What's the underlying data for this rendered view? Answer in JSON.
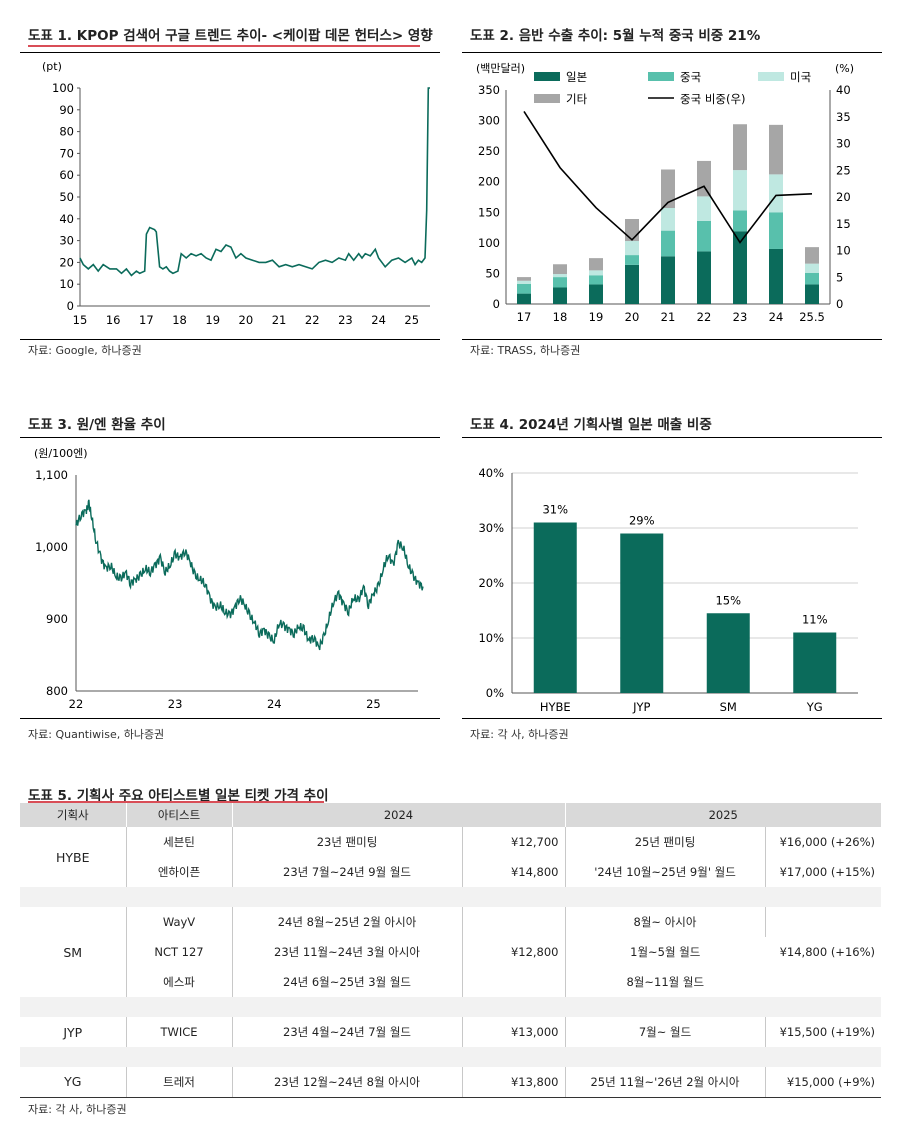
{
  "fig1": {
    "title": "도표 1. KPOP 검색어 구글 트렌드 추이- <케이팝 데몬 헌터스> 영향",
    "source": "자료: Google, 하나증권",
    "chart_data": {
      "type": "line",
      "ylabel": "(pt)",
      "ylim": [
        0,
        100
      ],
      "yticks": [
        "0",
        "10",
        "20",
        "30",
        "40",
        "50",
        "60",
        "70",
        "80",
        "90",
        "100"
      ],
      "xticks": [
        "15",
        "16",
        "17",
        "18",
        "19",
        "20",
        "21",
        "22",
        "23",
        "24",
        "25"
      ],
      "x": [
        15.0,
        15.1,
        15.25,
        15.4,
        15.55,
        15.7,
        15.9,
        16.1,
        16.25,
        16.4,
        16.55,
        16.7,
        16.8,
        16.95,
        17.0,
        17.1,
        17.25,
        17.3,
        17.4,
        17.5,
        17.6,
        17.7,
        17.8,
        17.95,
        18.05,
        18.2,
        18.35,
        18.5,
        18.65,
        18.8,
        18.95,
        19.1,
        19.25,
        19.4,
        19.55,
        19.7,
        19.85,
        20.0,
        20.2,
        20.4,
        20.6,
        20.8,
        21.0,
        21.2,
        21.4,
        21.6,
        21.8,
        22.0,
        22.2,
        22.4,
        22.6,
        22.8,
        23.0,
        23.1,
        23.25,
        23.4,
        23.5,
        23.6,
        23.75,
        23.9,
        24.0,
        24.2,
        24.4,
        24.6,
        24.8,
        25.0,
        25.1,
        25.2,
        25.3,
        25.4,
        25.45,
        25.5,
        25.55
      ],
      "values": [
        22,
        19,
        17,
        19,
        16,
        19,
        17,
        17,
        15,
        17,
        14,
        16,
        15,
        16,
        33,
        36,
        35,
        34,
        18,
        17,
        18,
        16,
        15,
        16,
        24,
        22,
        24,
        23,
        24,
        22,
        21,
        26,
        25,
        28,
        27,
        22,
        24,
        22,
        21,
        20,
        20,
        21,
        18,
        19,
        18,
        19,
        18,
        17,
        20,
        21,
        20,
        22,
        21,
        24,
        21,
        24,
        22,
        24,
        23,
        26,
        22,
        18,
        21,
        22,
        20,
        22,
        19,
        21,
        20,
        22,
        44,
        100,
        100
      ]
    }
  },
  "fig2": {
    "title": "도표 2. 음반 수출 추이: 5월 누적 중국 비중 21%",
    "source": "자료: TRASS, 하나증권",
    "chart_data": {
      "type": "bar",
      "stacked": true,
      "ylabel_left": "(백만달러)",
      "ylabel_right": "(%)",
      "ylim_left": [
        0,
        350
      ],
      "ylim_right": [
        0,
        40
      ],
      "yticks_left": [
        "0",
        "50",
        "100",
        "150",
        "200",
        "250",
        "300",
        "350"
      ],
      "yticks_right": [
        "0",
        "5",
        "10",
        "15",
        "20",
        "25",
        "30",
        "35",
        "40"
      ],
      "categories": [
        "17",
        "18",
        "19",
        "20",
        "21",
        "22",
        "23",
        "24",
        "25.5"
      ],
      "series": [
        {
          "name": "일본",
          "color": "#0b6b5b",
          "values": [
            17,
            27,
            32,
            64,
            78,
            86,
            119,
            90,
            32
          ]
        },
        {
          "name": "중국",
          "color": "#58c0ac",
          "values": [
            16,
            17,
            15,
            16,
            42,
            50,
            34,
            60,
            19
          ]
        },
        {
          "name": "미국",
          "color": "#bfe8e1",
          "values": [
            5,
            5,
            8,
            23,
            37,
            40,
            66,
            62,
            15
          ]
        },
        {
          "name": "기타",
          "color": "#a6a6a6",
          "values": [
            6,
            16,
            20,
            36,
            63,
            58,
            75,
            81,
            27
          ]
        }
      ],
      "line": {
        "name": "중국 비중(우)",
        "color": "#000000",
        "values": [
          36,
          25.5,
          18,
          12,
          19,
          22,
          11.5,
          20.3,
          20.6
        ]
      }
    }
  },
  "fig3": {
    "title": "도표 3. 원/엔 환율 추이",
    "source": "자료: Quantiwise, 하나증권",
    "chart_data": {
      "type": "line",
      "ylabel": "(원/100엔)",
      "ylim": [
        800,
        1100
      ],
      "yticks": [
        "800",
        "900",
        "1,000",
        "1,100"
      ],
      "xticks": [
        "22",
        "23",
        "24",
        "25"
      ],
      "x": [
        22.0,
        22.05,
        22.1,
        22.13,
        22.16,
        22.2,
        22.25,
        22.3,
        22.35,
        22.4,
        22.45,
        22.5,
        22.55,
        22.6,
        22.65,
        22.7,
        22.75,
        22.8,
        22.85,
        22.9,
        22.95,
        23.0,
        23.05,
        23.1,
        23.15,
        23.2,
        23.25,
        23.3,
        23.35,
        23.4,
        23.45,
        23.5,
        23.55,
        23.6,
        23.65,
        23.7,
        23.75,
        23.8,
        23.85,
        23.9,
        23.95,
        24.0,
        24.05,
        24.1,
        24.15,
        24.2,
        24.25,
        24.3,
        24.35,
        24.4,
        24.45,
        24.5,
        24.55,
        24.6,
        24.65,
        24.7,
        24.75,
        24.8,
        24.85,
        24.9,
        24.95,
        25.0,
        25.05,
        25.1,
        25.15,
        25.2,
        25.25,
        25.3,
        25.35,
        25.4,
        25.45,
        25.5
      ],
      "values": [
        1030,
        1045,
        1050,
        1060,
        1040,
        1010,
        985,
        970,
        975,
        960,
        955,
        965,
        950,
        955,
        960,
        970,
        965,
        975,
        985,
        965,
        975,
        990,
        985,
        995,
        980,
        960,
        955,
        950,
        930,
        915,
        920,
        910,
        905,
        915,
        930,
        920,
        905,
        895,
        880,
        885,
        875,
        870,
        895,
        890,
        885,
        880,
        890,
        885,
        870,
        875,
        860,
        875,
        900,
        925,
        935,
        920,
        910,
        930,
        925,
        945,
        920,
        935,
        945,
        970,
        990,
        975,
        1005,
        1000,
        975,
        960,
        950,
        945
      ]
    }
  },
  "fig4": {
    "title": "도표 4. 2024년 기획사별 일본 매출 비중",
    "source": "자료: 각 사, 하나증권",
    "chart_data": {
      "type": "bar",
      "ylim": [
        0,
        40
      ],
      "yticks": [
        "0%",
        "10%",
        "20%",
        "30%",
        "40%"
      ],
      "categories": [
        "HYBE",
        "JYP",
        "SM",
        "YG"
      ],
      "values": [
        31,
        29,
        14.5,
        11
      ],
      "labels": [
        "31%",
        "29%",
        "15%",
        "11%"
      ],
      "color": "#0b6b5b"
    }
  },
  "fig5": {
    "title": "도표 5. 기획사 주요 아티스트별 일본 티켓 가격 추이",
    "source": "자료: 각 사, 하나증권",
    "headers": {
      "agency": "기획사",
      "artist": "아티스트",
      "y2024": "2024",
      "y2025": "2025"
    },
    "hybe": {
      "name": "HYBE",
      "r1": {
        "artist": "세븐틴",
        "tour24": "23년 팬미팅",
        "price24": "¥12,700",
        "tour25": "25년 팬미팅",
        "price25": "¥16,000 (+26%)"
      },
      "r2": {
        "artist": "엔하이픈",
        "tour24": "23년 7월~24년 9월 월드",
        "price24": "¥14,800",
        "tour25": "'24년 10월~25년 9월' 월드",
        "price25": "¥17,000 (+15%)"
      }
    },
    "sm": {
      "name": "SM",
      "price24": "¥12,800",
      "price25": "¥14,800 (+16%)",
      "r1": {
        "artist": "WayV",
        "tour24": "24년 8월~25년 2월 아시아",
        "tour25": "8월~ 아시아"
      },
      "r2": {
        "artist": "NCT 127",
        "tour24": "23년 11월~24년 3월 아시아",
        "tour25": "1월~5월 월드"
      },
      "r3": {
        "artist": "에스파",
        "tour24": "24년 6월~25년 3월 월드",
        "tour25": "8월~11월 월드"
      }
    },
    "jyp": {
      "name": "JYP",
      "artist": "TWICE",
      "tour24": "23년 4월~24년 7월 월드",
      "price24": "¥13,000",
      "tour25": "7월~ 월드",
      "price25": "¥15,500 (+19%)"
    },
    "yg": {
      "name": "YG",
      "artist": "트레저",
      "tour24": "23년 12월~24년 8월 아시아",
      "price24": "¥13,800",
      "tour25": "25년 11월~'26년 2월 아시아",
      "price25": "¥15,000 (+9%)"
    }
  }
}
